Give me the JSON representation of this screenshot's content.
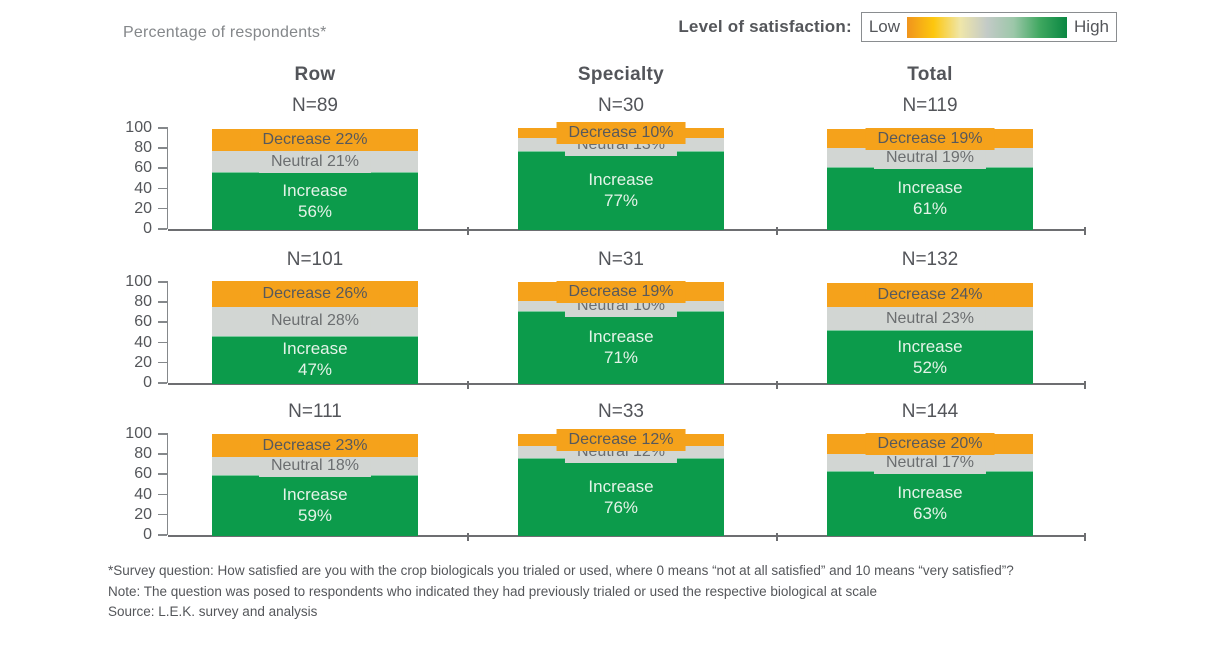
{
  "header": {
    "axis_note": "Percentage of respondents*",
    "legend": {
      "label": "Level of satisfaction:",
      "low": "Low",
      "high": "High",
      "gradient_stops": [
        "#F0941D",
        "#FDC70E",
        "#EFE6A9",
        "#C3CAC7",
        "#9CC7A9",
        "#3EA75F",
        "#0A8742"
      ]
    }
  },
  "colors": {
    "increase": "#0C9B4B",
    "neutral": "#D2D6D3",
    "decrease": "#F5A21B",
    "increase_text": "#E4F3E8",
    "neutral_text": "#6B6E70",
    "decrease_text": "#57595C",
    "axis": "#85888B",
    "baseline": "#6D6E71"
  },
  "chart_data": {
    "type": "bar",
    "stacked": true,
    "ylim": [
      0,
      100
    ],
    "yticks": [
      0,
      20,
      40,
      60,
      80,
      100
    ],
    "ylabel": "Percentage of respondents*",
    "columns": [
      "Row",
      "Specialty",
      "Total"
    ],
    "segments": [
      "Increase",
      "Neutral",
      "Decrease"
    ],
    "rows": [
      {
        "cells": [
          {
            "column": "Row",
            "n": "N=89",
            "increase": 56,
            "neutral": 21,
            "decrease": 22
          },
          {
            "column": "Specialty",
            "n": "N=30",
            "increase": 77,
            "neutral": 13,
            "decrease": 10
          },
          {
            "column": "Total",
            "n": "N=119",
            "increase": 61,
            "neutral": 19,
            "decrease": 19
          }
        ]
      },
      {
        "cells": [
          {
            "column": "Row",
            "n": "N=101",
            "increase": 47,
            "neutral": 28,
            "decrease": 26
          },
          {
            "column": "Specialty",
            "n": "N=31",
            "increase": 71,
            "neutral": 10,
            "decrease": 19
          },
          {
            "column": "Total",
            "n": "N=132",
            "increase": 52,
            "neutral": 23,
            "decrease": 24
          }
        ]
      },
      {
        "cells": [
          {
            "column": "Row",
            "n": "N=111",
            "increase": 59,
            "neutral": 18,
            "decrease": 23
          },
          {
            "column": "Specialty",
            "n": "N=33",
            "increase": 76,
            "neutral": 12,
            "decrease": 12
          },
          {
            "column": "Total",
            "n": "N=144",
            "increase": 63,
            "neutral": 17,
            "decrease": 20
          }
        ]
      }
    ]
  },
  "footnotes": {
    "survey": "*Survey question: How satisfied are you with the crop biologicals you trialed or used, where 0 means “not at all satisfied” and 10 means “very satisfied”?",
    "note": "Note: The question was posed to respondents who indicated they had previously trialed or used the respective biological at scale",
    "source": "Source: L.E.K. survey and analysis"
  }
}
